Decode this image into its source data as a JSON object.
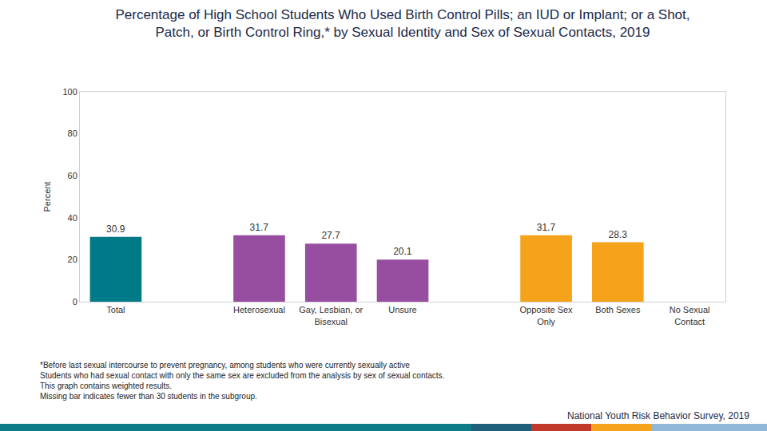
{
  "chart_data": {
    "type": "bar",
    "title": "Percentage of High School Students Who Used Birth Control Pills; an IUD or Implant; or a Shot,\nPatch, or Birth Control Ring,* by Sexual Identity and Sex of Sexual Contacts, 2019",
    "y_label": "Percent",
    "categories": [
      "Total",
      "Heterosexual",
      "Gay, Lesbian, or Bisexual",
      "Unsure",
      "Opposite Sex Only",
      "Both Sexes",
      "No Sexual Contact"
    ],
    "values": [
      30.9,
      31.7,
      27.7,
      20.1,
      31.7,
      28.3,
      null
    ],
    "colors": [
      "#007a87",
      "#984ea0",
      "#984ea0",
      "#984ea0",
      "#f5a31a",
      "#f5a31a",
      "#f5a31a"
    ],
    "ylim": [
      0,
      100
    ],
    "yticks": [
      0,
      20,
      40,
      60,
      80,
      100
    ],
    "grid": false,
    "data_labels": true,
    "notes": [
      "*Before last sexual intercourse to prevent pregnancy, among students who were currently sexually active",
      "Students who had sexual contact with only the same sex are excluded from the analysis by sex of sexual contacts.",
      "This graph contains weighted results.",
      "Missing bar indicates fewer than 30 students in the subgroup."
    ],
    "source": "National Youth Risk Behavior Survey, 2019"
  }
}
